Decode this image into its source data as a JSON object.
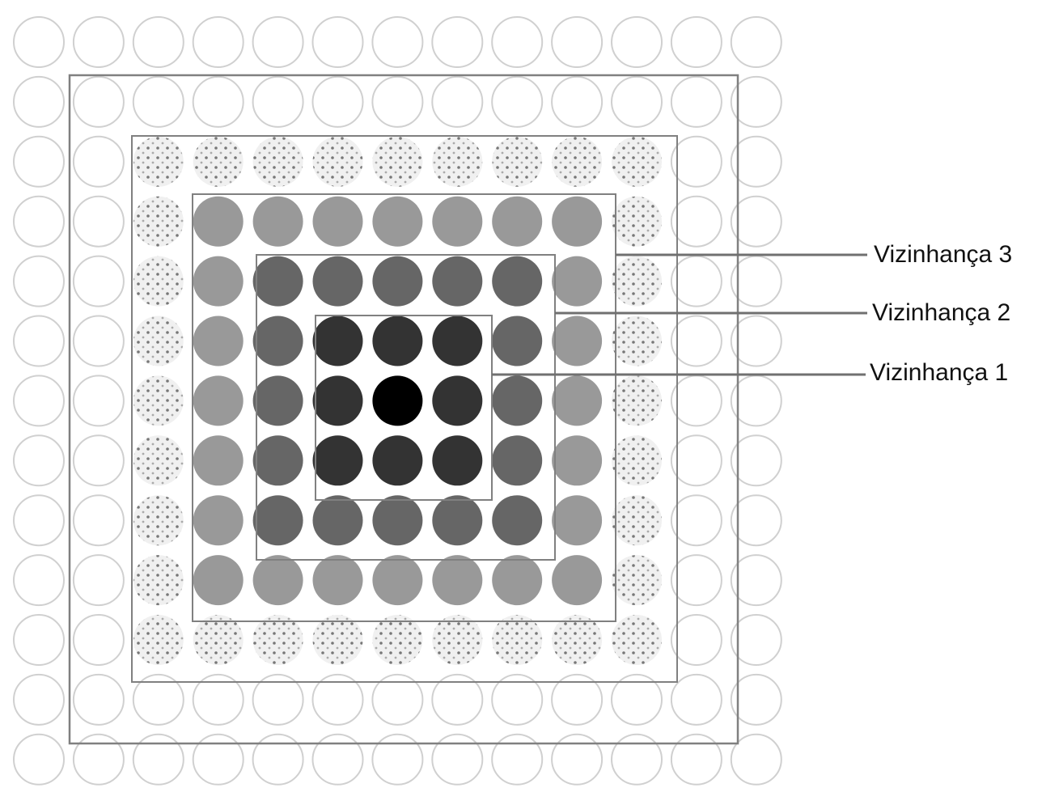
{
  "diagram": {
    "grid_size": 13,
    "colors": {
      "ring_0_center": "#000000",
      "ring_1": "#333333",
      "ring_2": "#666666",
      "ring_3": "#999999",
      "ring_4_dotted_fill": "#f0f0f0",
      "ring_4_dots": "#777777",
      "outer_stroke": "#d0d0d0",
      "frame_stroke": "#808080",
      "leader_line": "#707070"
    },
    "neighborhoods": [
      {
        "label": "Vizinhança 1",
        "radius": 1
      },
      {
        "label": "Vizinhança 2",
        "radius": 2
      },
      {
        "label": "Vizinhança 3",
        "radius": 3
      },
      {
        "label": "",
        "radius": 4
      },
      {
        "label": "",
        "radius": 5
      }
    ]
  }
}
